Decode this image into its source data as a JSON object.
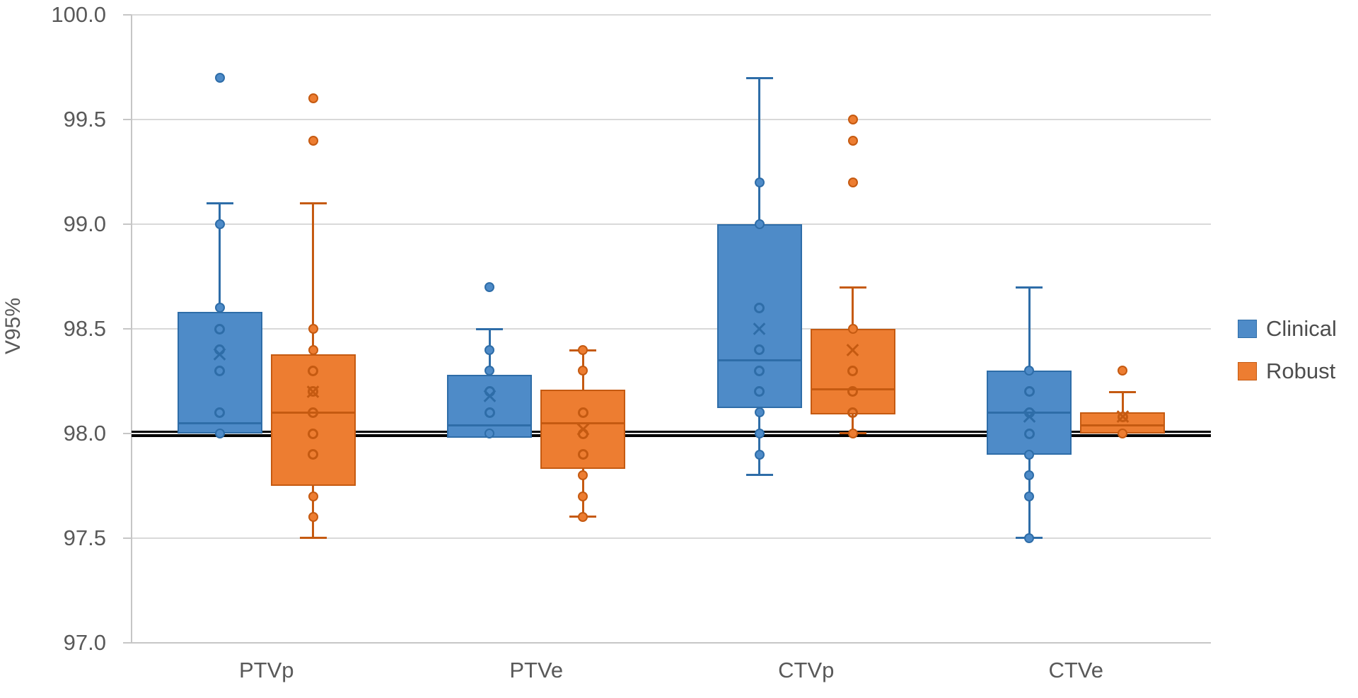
{
  "chart_data": {
    "type": "boxplot",
    "title": "",
    "ylabel": "V95%",
    "xlabel": "",
    "ylim": [
      97.0,
      100.0
    ],
    "ytick_step": 0.5,
    "yticks": [
      "100.0",
      "99.5",
      "99.0",
      "98.5",
      "98.0",
      "97.5",
      "97.0"
    ],
    "categories": [
      "PTVp",
      "PTVe",
      "CTVp",
      "CTVe"
    ],
    "grid": true,
    "legend_position": "right",
    "reference_line": {
      "value": 98.0,
      "color": "#000000"
    },
    "colors": {
      "clinical_fill": "#4e8bc8",
      "clinical_edge": "#2e6da8",
      "robust_fill": "#ed7d31",
      "robust_edge": "#c55a11",
      "gridline": "#d9d9d9",
      "axis_text": "#595959"
    },
    "series": [
      {
        "name": "Clinical",
        "fill": "#4e8bc8",
        "edge": "#2e6da8",
        "boxes": [
          {
            "category": "PTVp",
            "q1": 98.0,
            "median": 98.05,
            "q3": 98.58,
            "whisker_low": 98.0,
            "whisker_high": 99.1,
            "mean": 98.38,
            "outliers": [
              99.7
            ],
            "points_solid": [
              99.0,
              98.6,
              98.0
            ],
            "points_open": [
              98.5,
              98.4,
              98.3,
              98.1
            ]
          },
          {
            "category": "PTVe",
            "q1": 97.98,
            "median": 98.04,
            "q3": 98.28,
            "whisker_low": 97.98,
            "whisker_high": 98.5,
            "mean": 98.18,
            "outliers": [
              98.7
            ],
            "points_solid": [
              98.4,
              98.3,
              98.0
            ],
            "points_open": [
              98.2,
              98.1
            ]
          },
          {
            "category": "CTVp",
            "q1": 98.12,
            "median": 98.35,
            "q3": 99.0,
            "whisker_low": 97.8,
            "whisker_high": 99.7,
            "mean": 98.5,
            "outliers": [],
            "points_solid": [
              99.2,
              99.0,
              98.1,
              98.0,
              97.9
            ],
            "points_open": [
              98.6,
              98.4,
              98.3,
              98.2
            ]
          },
          {
            "category": "CTVe",
            "q1": 97.9,
            "median": 98.1,
            "q3": 98.3,
            "whisker_low": 97.5,
            "whisker_high": 98.7,
            "mean": 98.08,
            "outliers": [],
            "points_solid": [
              98.3,
              97.9,
              97.8,
              97.7,
              97.5
            ],
            "points_open": [
              98.2,
              98.1,
              98.0
            ]
          }
        ]
      },
      {
        "name": "Robust",
        "fill": "#ed7d31",
        "edge": "#c55a11",
        "boxes": [
          {
            "category": "PTVp",
            "q1": 97.75,
            "median": 98.1,
            "q3": 98.38,
            "whisker_low": 97.5,
            "whisker_high": 99.1,
            "mean": 98.2,
            "outliers": [
              99.6,
              99.4
            ],
            "points_solid": [
              98.5,
              98.4,
              97.7,
              97.6
            ],
            "points_open": [
              98.3,
              98.2,
              98.1,
              98.0,
              97.9
            ]
          },
          {
            "category": "PTVe",
            "q1": 97.83,
            "median": 98.05,
            "q3": 98.21,
            "whisker_low": 97.6,
            "whisker_high": 98.4,
            "mean": 98.02,
            "outliers": [],
            "points_solid": [
              98.4,
              98.3,
              97.8,
              97.7,
              97.6
            ],
            "points_open": [
              98.1,
              98.0,
              97.9
            ]
          },
          {
            "category": "CTVp",
            "q1": 98.09,
            "median": 98.21,
            "q3": 98.5,
            "whisker_low": 98.0,
            "whisker_high": 98.7,
            "mean": 98.4,
            "outliers": [
              99.5,
              99.4,
              99.2
            ],
            "points_solid": [
              98.5,
              98.0
            ],
            "points_open": [
              98.3,
              98.2,
              98.1
            ]
          },
          {
            "category": "CTVe",
            "q1": 98.0,
            "median": 98.04,
            "q3": 98.1,
            "whisker_low": 98.0,
            "whisker_high": 98.2,
            "mean": 98.08,
            "outliers": [
              98.3
            ],
            "points_solid": [
              98.0
            ],
            "points_open": [
              98.08
            ]
          }
        ]
      }
    ]
  }
}
